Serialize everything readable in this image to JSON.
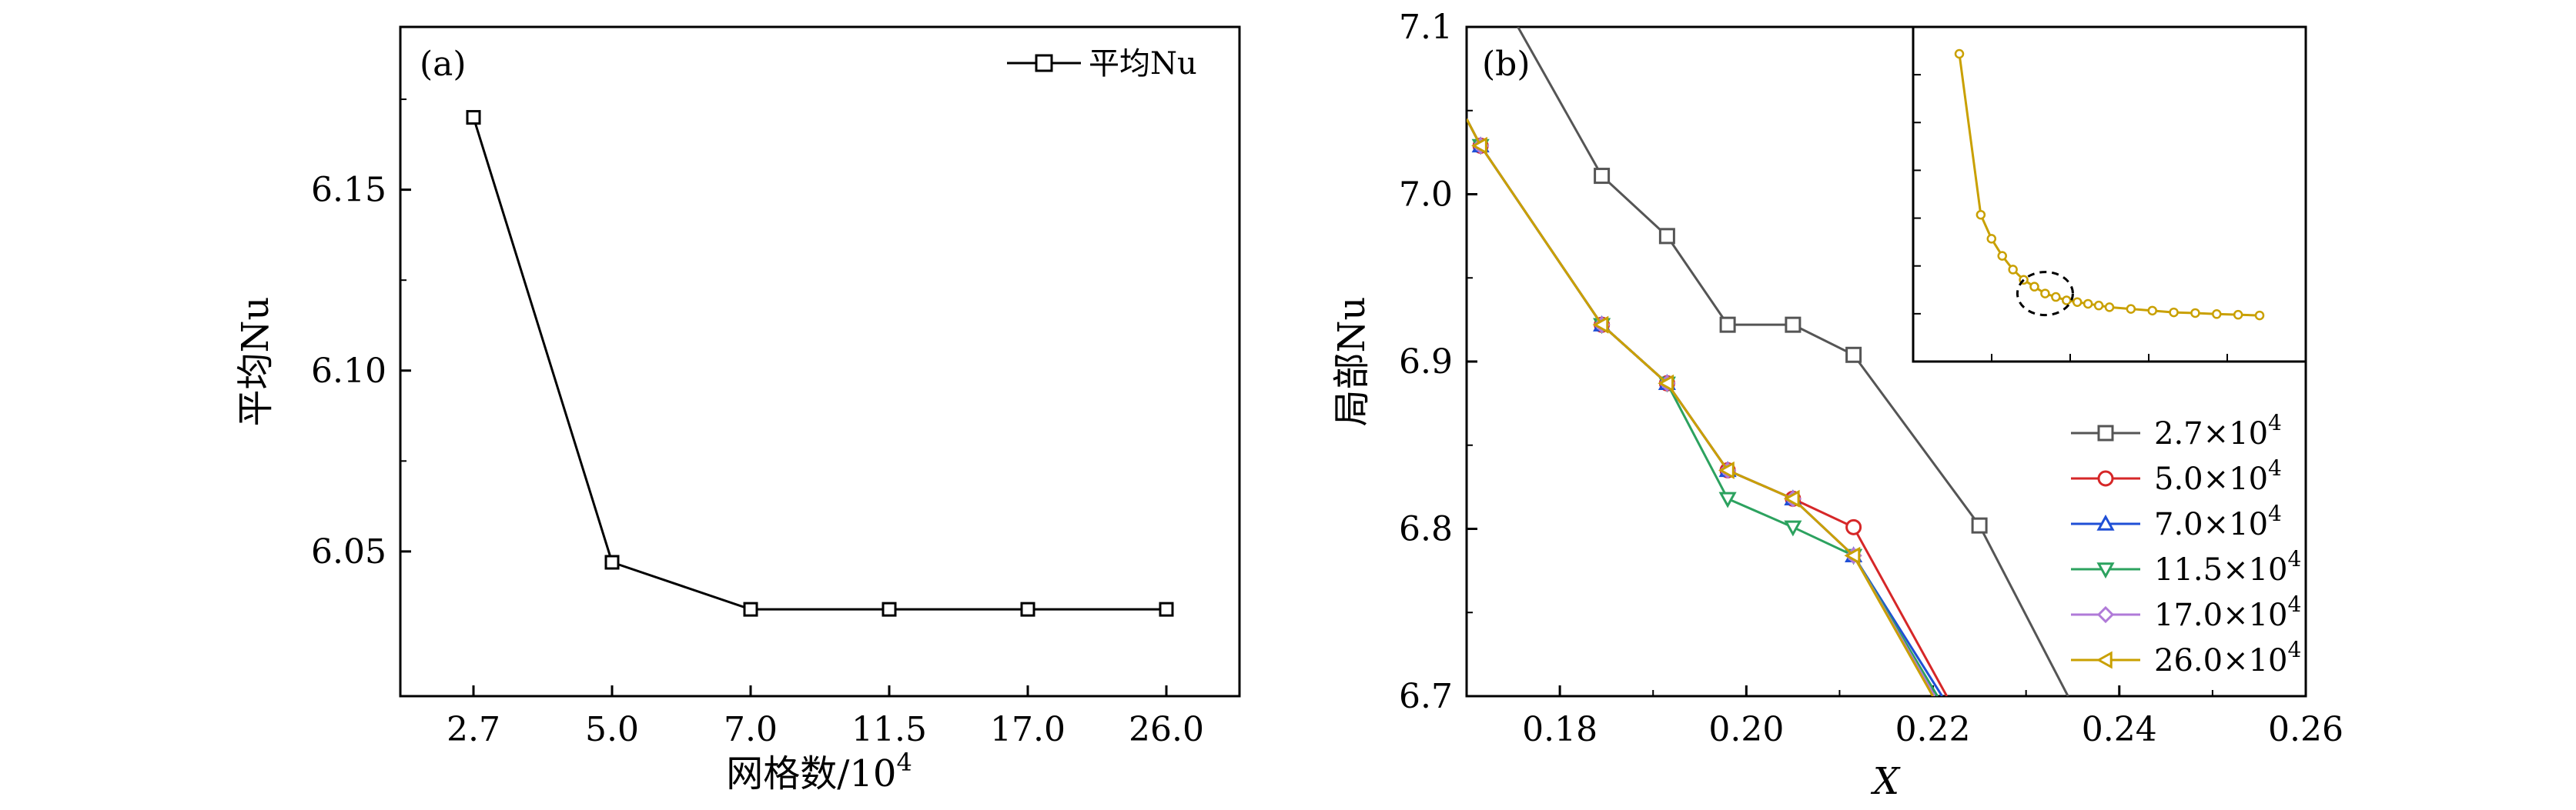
{
  "chart_data": [
    {
      "panel": "(a)",
      "type": "line",
      "categories": [
        "2.7",
        "5.0",
        "7.0",
        "11.5",
        "17.0",
        "26.0"
      ],
      "series": [
        {
          "name": "平均Nu",
          "color": "#000000",
          "marker": "square",
          "values": [
            6.17,
            6.047,
            6.034,
            6.034,
            6.034,
            6.034
          ]
        }
      ],
      "xlabel": "网格数/10",
      "xlabel_sup": "4",
      "ylabel": "平均Nu",
      "ylim": [
        6.01,
        6.195
      ],
      "yticks": [
        "6.05",
        "6.10",
        "6.15"
      ],
      "ytick_values": [
        6.05,
        6.1,
        6.15
      ],
      "legend_position": "top-right"
    },
    {
      "panel": "(b)",
      "type": "line",
      "xlabel": "X",
      "ylabel": "局部Nu",
      "xlim": [
        0.17,
        0.26
      ],
      "ylim": [
        6.7,
        7.1
      ],
      "xticks": [
        "0.18",
        "0.20",
        "0.22",
        "0.24",
        "0.26"
      ],
      "xtick_values": [
        0.18,
        0.2,
        0.22,
        0.24,
        0.26
      ],
      "yticks": [
        "6.7",
        "6.8",
        "6.9",
        "7.0",
        "7.1"
      ],
      "ytick_values": [
        6.7,
        6.8,
        6.9,
        7.0,
        7.1
      ],
      "legend_position": "bottom-right",
      "legend_sup": "4",
      "series": [
        {
          "name": "2.7×10",
          "color": "#555555",
          "marker": "square",
          "x": [
            0.1755,
            0.1845,
            0.1915,
            0.198,
            0.205,
            0.2115,
            0.225,
            0.2345
          ],
          "y": [
            7.1,
            7.011,
            6.975,
            6.922,
            6.922,
            6.904,
            6.802,
            6.7
          ]
        },
        {
          "name": "5.0×10",
          "color": "#d62728",
          "marker": "circle",
          "x": [
            0.17,
            0.1715,
            0.1845,
            0.1915,
            0.198,
            0.205,
            0.2115,
            0.2215
          ],
          "y": [
            7.045,
            7.029,
            6.922,
            6.887,
            6.835,
            6.818,
            6.801,
            6.7
          ]
        },
        {
          "name": "7.0×10",
          "color": "#1f4fd6",
          "marker": "triangle-up",
          "x": [
            0.17,
            0.1715,
            0.1845,
            0.1915,
            0.198,
            0.205,
            0.2115,
            0.221
          ],
          "y": [
            7.045,
            7.029,
            6.922,
            6.887,
            6.835,
            6.818,
            6.784,
            6.7
          ]
        },
        {
          "name": "11.5×10",
          "color": "#2ca25f",
          "marker": "triangle-down",
          "x": [
            0.17,
            0.1715,
            0.1845,
            0.1915,
            0.198,
            0.205,
            0.2115,
            0.2205
          ],
          "y": [
            7.045,
            7.029,
            6.922,
            6.887,
            6.818,
            6.801,
            6.784,
            6.7
          ]
        },
        {
          "name": "17.0×10",
          "color": "#b07ad8",
          "marker": "diamond",
          "x": [
            0.17,
            0.1715,
            0.1845,
            0.1915,
            0.198,
            0.205,
            0.2115,
            0.2202
          ],
          "y": [
            7.045,
            7.029,
            6.922,
            6.887,
            6.835,
            6.818,
            6.784,
            6.7
          ]
        },
        {
          "name": "26.0×10",
          "color": "#c9a000",
          "marker": "triangle-left",
          "x": [
            0.17,
            0.1715,
            0.1845,
            0.1915,
            0.198,
            0.205,
            0.2115,
            0.22
          ],
          "y": [
            7.045,
            7.029,
            6.922,
            6.887,
            6.835,
            6.818,
            6.784,
            6.7
          ]
        }
      ],
      "inset": {
        "type": "line",
        "color": "#c9a000",
        "x": [
          0.0,
          0.02,
          0.03,
          0.04,
          0.05,
          0.06,
          0.07,
          0.08,
          0.09,
          0.1,
          0.11,
          0.12,
          0.13,
          0.14,
          0.16,
          0.18,
          0.2,
          0.22,
          0.24,
          0.26,
          0.28
        ],
        "y": [
          1.0,
          0.53,
          0.46,
          0.41,
          0.37,
          0.34,
          0.32,
          0.3,
          0.29,
          0.28,
          0.275,
          0.27,
          0.265,
          0.26,
          0.255,
          0.25,
          0.245,
          0.243,
          0.24,
          0.238,
          0.236
        ],
        "highlight": "dashed circle around zoomed region"
      }
    }
  ]
}
